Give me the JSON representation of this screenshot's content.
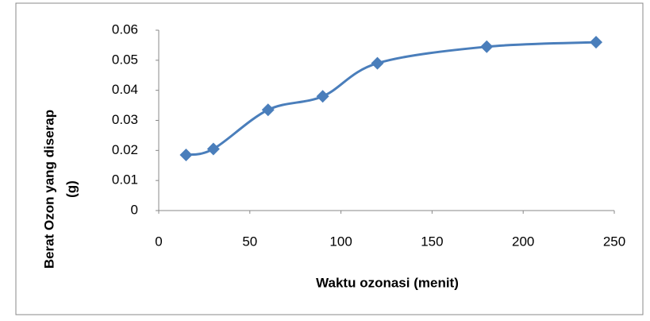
{
  "chart_data": {
    "type": "line",
    "xlabel": "Waktu ozonasi  (menit)",
    "ylabel": [
      "Berat Ozon yang diserap",
      "(g)"
    ],
    "x": [
      15,
      30,
      60,
      90,
      120,
      180,
      240
    ],
    "series": [
      {
        "color": "#4a7ebb",
        "values": [
          0.0185,
          0.0205,
          0.0335,
          0.038,
          0.049,
          0.0545,
          0.056
        ]
      }
    ],
    "xlim": [
      0,
      250
    ],
    "xticks": [
      0,
      50,
      100,
      150,
      200,
      250
    ],
    "ylim": [
      0,
      0.06
    ],
    "yticks": [
      0,
      0.01,
      0.02,
      0.03,
      0.04,
      0.05,
      0.06
    ],
    "grid": false,
    "smooth": true
  }
}
